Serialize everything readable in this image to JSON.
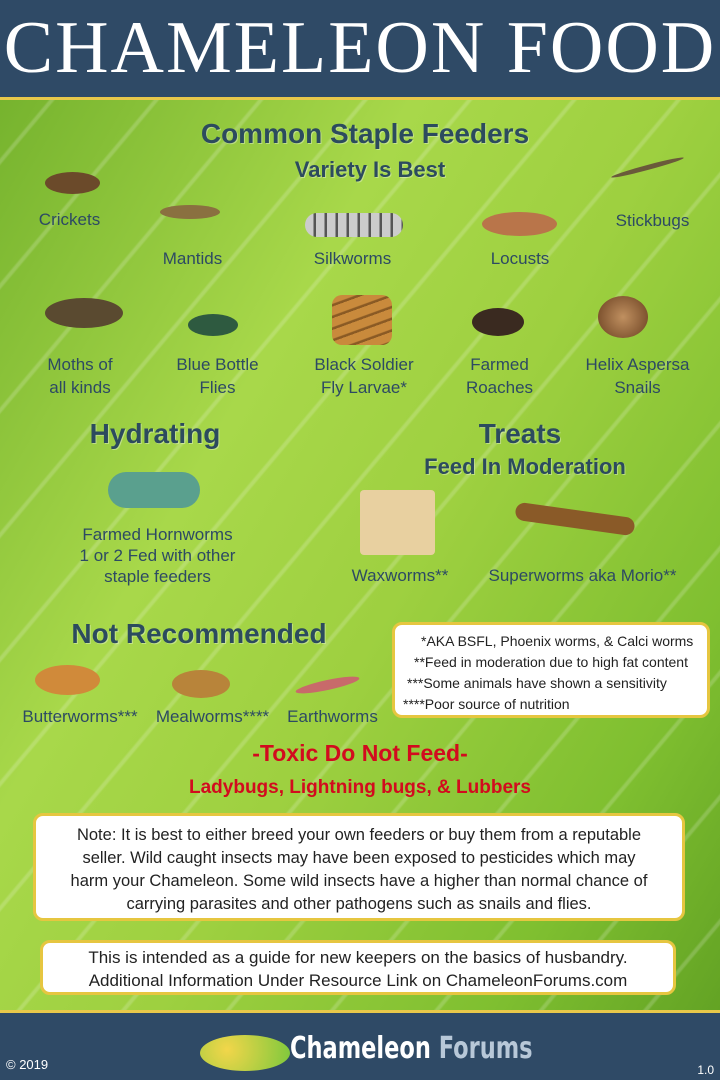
{
  "title": "CHAMELEON FOOD",
  "staple": {
    "heading": "Common Staple Feeders",
    "subheading": "Variety Is Best",
    "items": [
      "Crickets",
      "Mantids",
      "Silkworms",
      "Locusts",
      "Stickbugs",
      "Moths of\nall kinds",
      "Blue Bottle\nFlies",
      "Black Soldier\nFly Larvae*",
      "Farmed\nRoaches",
      "Helix Aspersa\nSnails"
    ]
  },
  "hydrating": {
    "heading": "Hydrating",
    "item": "Farmed Hornworms\n1 or 2 Fed with other\nstaple feeders"
  },
  "treats": {
    "heading": "Treats",
    "subheading": "Feed In Moderation",
    "items": [
      "Waxworms**",
      "Superworms aka Morio**"
    ]
  },
  "not_recommended": {
    "heading": "Not Recommended",
    "items": [
      "Butterworms***",
      "Mealworms****",
      "Earthworms"
    ]
  },
  "footnotes": [
    "*AKA BSFL, Phoenix worms, & Calci worms",
    "**Feed in moderation due to high fat content",
    "***Some animals have shown a sensitivity",
    "****Poor source of nutrition"
  ],
  "toxic": {
    "heading": "-Toxic Do Not Feed-",
    "items": "Ladybugs, Lightning bugs, & Lubbers"
  },
  "note": "Note: It is best to either breed your own feeders or buy them from a reputable seller. Wild caught insects may have been exposed to pesticides which may harm your Chameleon. Some wild insects have a higher than normal chance of carrying parasites and other pathogens such as snails and flies.",
  "guide": "This is intended as a guide for new keepers on the basics of husbandry. Additional Information Under Resource Link on ChameleonForums.com",
  "footer": {
    "copyright": "© 2019",
    "logo_text_1": "Chameleon",
    "logo_text_2": "Forums",
    "version": "1.0"
  },
  "colors": {
    "header": "#2f4a66",
    "border": "#e8c84a",
    "heading": "#2c4b5e",
    "toxic": "#d20b1e"
  }
}
